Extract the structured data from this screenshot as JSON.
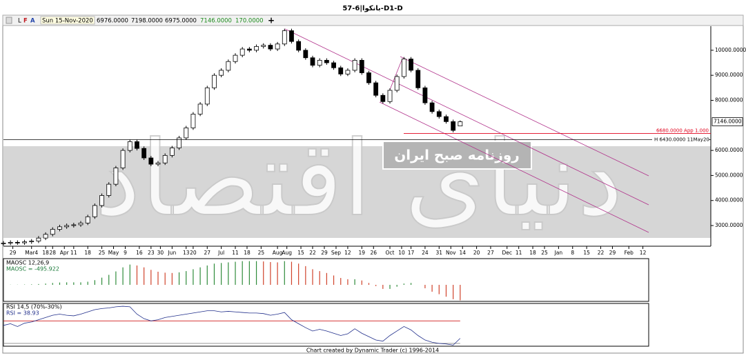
{
  "window": {
    "title": "57-6|بانکوا-D1-D",
    "toolbar": {
      "icons": [
        "L",
        "F",
        "A"
      ],
      "date": "Sun 15-Nov-2020",
      "fields": [
        "6976.0000",
        "7198.0000",
        "6975.0000",
        "7146.0000",
        "170.0000"
      ],
      "add": "+"
    }
  },
  "watermark": {
    "title": "دنیای اقتصاد",
    "subtitle": "روزنامه صبح ایران"
  },
  "footer": "Chart created by Dynamic Trader  (c) 1996-2014",
  "chart_data": [
    {
      "type": "candlestick",
      "x": [
        0,
        3,
        6,
        9,
        12,
        15,
        18,
        21,
        24,
        27,
        30,
        33,
        36,
        39,
        42,
        45,
        48,
        51,
        54,
        57,
        60,
        63,
        66,
        69,
        72,
        75,
        78,
        81,
        84,
        87,
        90,
        93,
        96,
        99,
        102,
        105,
        108,
        111,
        114,
        117,
        120,
        123,
        126,
        129,
        132,
        135,
        138,
        141,
        144,
        147,
        150,
        153,
        156,
        159,
        162,
        165,
        168,
        171,
        174,
        177,
        180,
        183,
        186,
        189,
        192,
        195
      ],
      "open": [
        2280,
        2300,
        2330,
        2310,
        2350,
        2380,
        2500,
        2650,
        2850,
        2950,
        3000,
        3030,
        3100,
        3350,
        3800,
        4200,
        4650,
        5300,
        6000,
        6350,
        6080,
        5700,
        5450,
        5500,
        5800,
        6100,
        6500,
        6900,
        7450,
        7850,
        8500,
        9000,
        9200,
        9550,
        9800,
        10050,
        10000,
        10150,
        10200,
        10050,
        10250,
        10780,
        10350,
        10000,
        9700,
        9400,
        9600,
        9500,
        9300,
        9050,
        9200,
        9600,
        9100,
        8700,
        8200,
        7950,
        8400,
        8950,
        9650,
        9200,
        8500,
        7900,
        7550,
        7350,
        7150,
        6976
      ],
      "high": [
        2380,
        2410,
        2410,
        2430,
        2460,
        2580,
        2730,
        2930,
        3030,
        3080,
        3110,
        3180,
        3430,
        3880,
        4280,
        4730,
        5380,
        6080,
        6430,
        6430,
        6160,
        5780,
        5580,
        5880,
        6180,
        6580,
        6980,
        7530,
        7930,
        8580,
        9080,
        9280,
        9630,
        9880,
        10130,
        10130,
        10230,
        10280,
        10280,
        10330,
        10860,
        10860,
        10430,
        10080,
        9780,
        9680,
        9680,
        9580,
        9380,
        9280,
        9680,
        9680,
        9180,
        8780,
        8280,
        8480,
        9030,
        9730,
        9730,
        9280,
        8580,
        7980,
        7630,
        7430,
        7230,
        7198
      ],
      "low": [
        2200,
        2220,
        2230,
        2230,
        2270,
        2300,
        2420,
        2570,
        2770,
        2870,
        2920,
        2950,
        3020,
        3270,
        3720,
        4120,
        4570,
        5220,
        5920,
        6000,
        5620,
        5370,
        5370,
        5420,
        5720,
        6020,
        6420,
        6820,
        7370,
        7770,
        8420,
        8920,
        9120,
        9470,
        9720,
        9920,
        9920,
        10070,
        9970,
        9970,
        10170,
        10270,
        9920,
        9620,
        9320,
        9320,
        9420,
        9220,
        8970,
        8970,
        9120,
        9020,
        8620,
        8120,
        7870,
        7870,
        8320,
        8870,
        9120,
        8420,
        7820,
        7470,
        7270,
        7070,
        6720,
        6975
      ],
      "close": [
        2300,
        2330,
        2310,
        2350,
        2380,
        2500,
        2650,
        2850,
        2950,
        3000,
        3030,
        3100,
        3350,
        3800,
        4200,
        4650,
        5300,
        6000,
        6350,
        6080,
        5700,
        5450,
        5500,
        5800,
        6100,
        6500,
        6900,
        7450,
        7850,
        8500,
        9000,
        9200,
        9550,
        9800,
        10050,
        10000,
        10150,
        10200,
        10050,
        10250,
        10780,
        10350,
        10000,
        9700,
        9400,
        9600,
        9500,
        9300,
        9050,
        9200,
        9600,
        9100,
        8700,
        8200,
        7950,
        8400,
        8950,
        9650,
        9200,
        8500,
        7900,
        7550,
        7350,
        7150,
        6800,
        7146
      ],
      "up_color": "#ffffff",
      "down_color": "#000000",
      "xlim": [
        0,
        302
      ],
      "xticks": [
        {
          "value": 4,
          "label": "29"
        },
        {
          "value": 12,
          "label": "Mar4"
        },
        {
          "value": 18,
          "label": "18"
        },
        {
          "value": 21,
          "label": "28"
        },
        {
          "value": 26,
          "label": "Apr"
        },
        {
          "value": 30,
          "label": "11"
        },
        {
          "value": 36,
          "label": "18"
        },
        {
          "value": 42,
          "label": "25"
        },
        {
          "value": 47,
          "label": "May"
        },
        {
          "value": 52,
          "label": "9"
        },
        {
          "value": 58,
          "label": "16"
        },
        {
          "value": 63,
          "label": "23"
        },
        {
          "value": 67,
          "label": "30"
        },
        {
          "value": 72,
          "label": "Jun"
        },
        {
          "value": 78,
          "label": "13"
        },
        {
          "value": 81,
          "label": "20"
        },
        {
          "value": 87,
          "label": "27"
        },
        {
          "value": 93,
          "label": "Jul"
        },
        {
          "value": 99,
          "label": "11"
        },
        {
          "value": 104,
          "label": "18"
        },
        {
          "value": 110,
          "label": "25"
        },
        {
          "value": 117,
          "label": "Aug"
        },
        {
          "value": 121,
          "label": "Aug"
        },
        {
          "value": 127,
          "label": "15"
        },
        {
          "value": 132,
          "label": "22"
        },
        {
          "value": 137,
          "label": "29"
        },
        {
          "value": 142,
          "label": "Sep"
        },
        {
          "value": 147,
          "label": "12"
        },
        {
          "value": 153,
          "label": "19"
        },
        {
          "value": 158,
          "label": "26"
        },
        {
          "value": 165,
          "label": "Oct"
        },
        {
          "value": 170,
          "label": "10"
        },
        {
          "value": 174,
          "label": "17"
        },
        {
          "value": 180,
          "label": "24"
        },
        {
          "value": 186,
          "label": "31"
        },
        {
          "value": 191,
          "label": "Nov"
        },
        {
          "value": 196,
          "label": "14"
        },
        {
          "value": 202,
          "label": "20"
        },
        {
          "value": 208,
          "label": "27"
        },
        {
          "value": 215,
          "label": "Dec"
        },
        {
          "value": 220,
          "label": "11"
        },
        {
          "value": 226,
          "label": "18"
        },
        {
          "value": 231,
          "label": "25"
        },
        {
          "value": 237,
          "label": "Jan"
        },
        {
          "value": 243,
          "label": "8"
        },
        {
          "value": 249,
          "label": "15"
        },
        {
          "value": 255,
          "label": "22"
        },
        {
          "value": 260,
          "label": "29"
        },
        {
          "value": 267,
          "label": "Feb"
        },
        {
          "value": 273,
          "label": "12"
        }
      ],
      "ylim": [
        2175,
        10960
      ],
      "yticks": [
        {
          "value": 3000,
          "label": "3000.0000"
        },
        {
          "value": 4000,
          "label": "4000.0000"
        },
        {
          "value": 5000,
          "label": "5000.0000"
        },
        {
          "value": 6000,
          "label": "6000.0000"
        },
        {
          "value": 8000,
          "label": "8000.0000"
        },
        {
          "value": 9000,
          "label": "9000.0000"
        },
        {
          "value": 10000,
          "label": "10000.0000"
        }
      ],
      "last_price": {
        "value": 7146,
        "label": "7146.0000"
      },
      "levels": [
        {
          "value": 6680,
          "label": "6680.0000  App 1.000",
          "color": "#e0001b"
        },
        {
          "value": 6430,
          "label": "H 6430.0000  11May20",
          "color": "#000000"
        }
      ]
    },
    {
      "type": "histogram",
      "title": "MAOSC 12,26,9",
      "readout": "MAOSC = -495.922",
      "values": [
        0,
        5,
        5,
        10,
        15,
        25,
        40,
        60,
        75,
        80,
        80,
        80,
        100,
        150,
        230,
        320,
        430,
        560,
        650,
        620,
        560,
        480,
        420,
        390,
        380,
        400,
        440,
        500,
        560,
        620,
        680,
        700,
        720,
        740,
        760,
        760,
        760,
        750,
        730,
        720,
        760,
        740,
        680,
        600,
        500,
        440,
        380,
        300,
        220,
        180,
        180,
        140,
        60,
        -40,
        -130,
        -130,
        -60,
        40,
        60,
        0,
        -110,
        -220,
        -300,
        -380,
        -460,
        -495.922
      ],
      "rising_color": "#2e8b3a",
      "falling_color": "#d0422a",
      "ylim": [
        -530,
        840
      ]
    },
    {
      "type": "line",
      "title": "RSI 14,5 (70%-30%)",
      "readout": "RSI = 38.93",
      "color": "#1f2d8a",
      "values": [
        62,
        65,
        60,
        66,
        68,
        72,
        76,
        80,
        82,
        80,
        79,
        82,
        86,
        90,
        92,
        93,
        95,
        96,
        95,
        82,
        74,
        70,
        72,
        76,
        78,
        80,
        82,
        84,
        86,
        88,
        88,
        86,
        87,
        86,
        85,
        84,
        84,
        83,
        80,
        82,
        85,
        72,
        65,
        58,
        52,
        55,
        52,
        48,
        44,
        47,
        56,
        48,
        42,
        36,
        34,
        44,
        52,
        60,
        54,
        44,
        36,
        32,
        30,
        29,
        27,
        38.93
      ],
      "ylim": [
        25,
        101
      ],
      "levels": [
        {
          "value": 70,
          "color": "#d01c1c"
        },
        {
          "value": 30,
          "color": "#8a8a8a"
        }
      ]
    }
  ]
}
